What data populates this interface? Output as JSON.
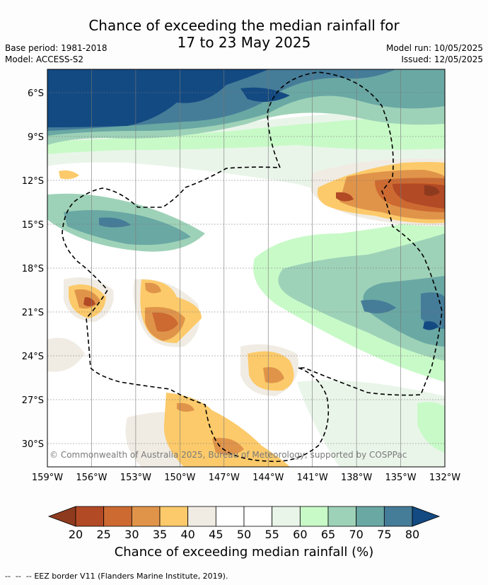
{
  "title": {
    "line1": "Chance of exceeding the median rainfall for",
    "line2": "17 to 23 May 2025"
  },
  "meta": {
    "base_period": "Base period: 1981-2018",
    "model": "Model: ACCESS-S2",
    "model_run": "Model run: 10/05/2025",
    "issued": "Issued: 12/05/2025"
  },
  "map": {
    "lon_labels": [
      "159°W",
      "156°W",
      "153°W",
      "150°W",
      "147°W",
      "144°W",
      "141°W",
      "138°W",
      "135°W",
      "132°W"
    ],
    "lat_labels": [
      "6°S",
      "9°S",
      "12°S",
      "15°S",
      "18°S",
      "21°S",
      "24°S",
      "27°S",
      "30°S"
    ],
    "copyright": "© Commonwealth of Australia 2025, Bureau of Meteorology, supported by COSPPac"
  },
  "colorbar": {
    "ticks": [
      "20",
      "25",
      "30",
      "35",
      "40",
      "45",
      "50",
      "55",
      "60",
      "65",
      "70",
      "75",
      "80"
    ],
    "colors": [
      "#8e3a1e",
      "#b24a26",
      "#cc6a32",
      "#e0944a",
      "#fcca6a",
      "#f0ece4",
      "#ffffff",
      "#ffffff",
      "#eaf5ea",
      "#c8fac8",
      "#9ed2b8",
      "#6aa8a4",
      "#457c98",
      "#134a82"
    ],
    "label": "Chance of exceeding median rainfall (%)"
  },
  "legend": {
    "eez": "EEZ border V11 (Flanders Marine Institute, 2019)."
  }
}
